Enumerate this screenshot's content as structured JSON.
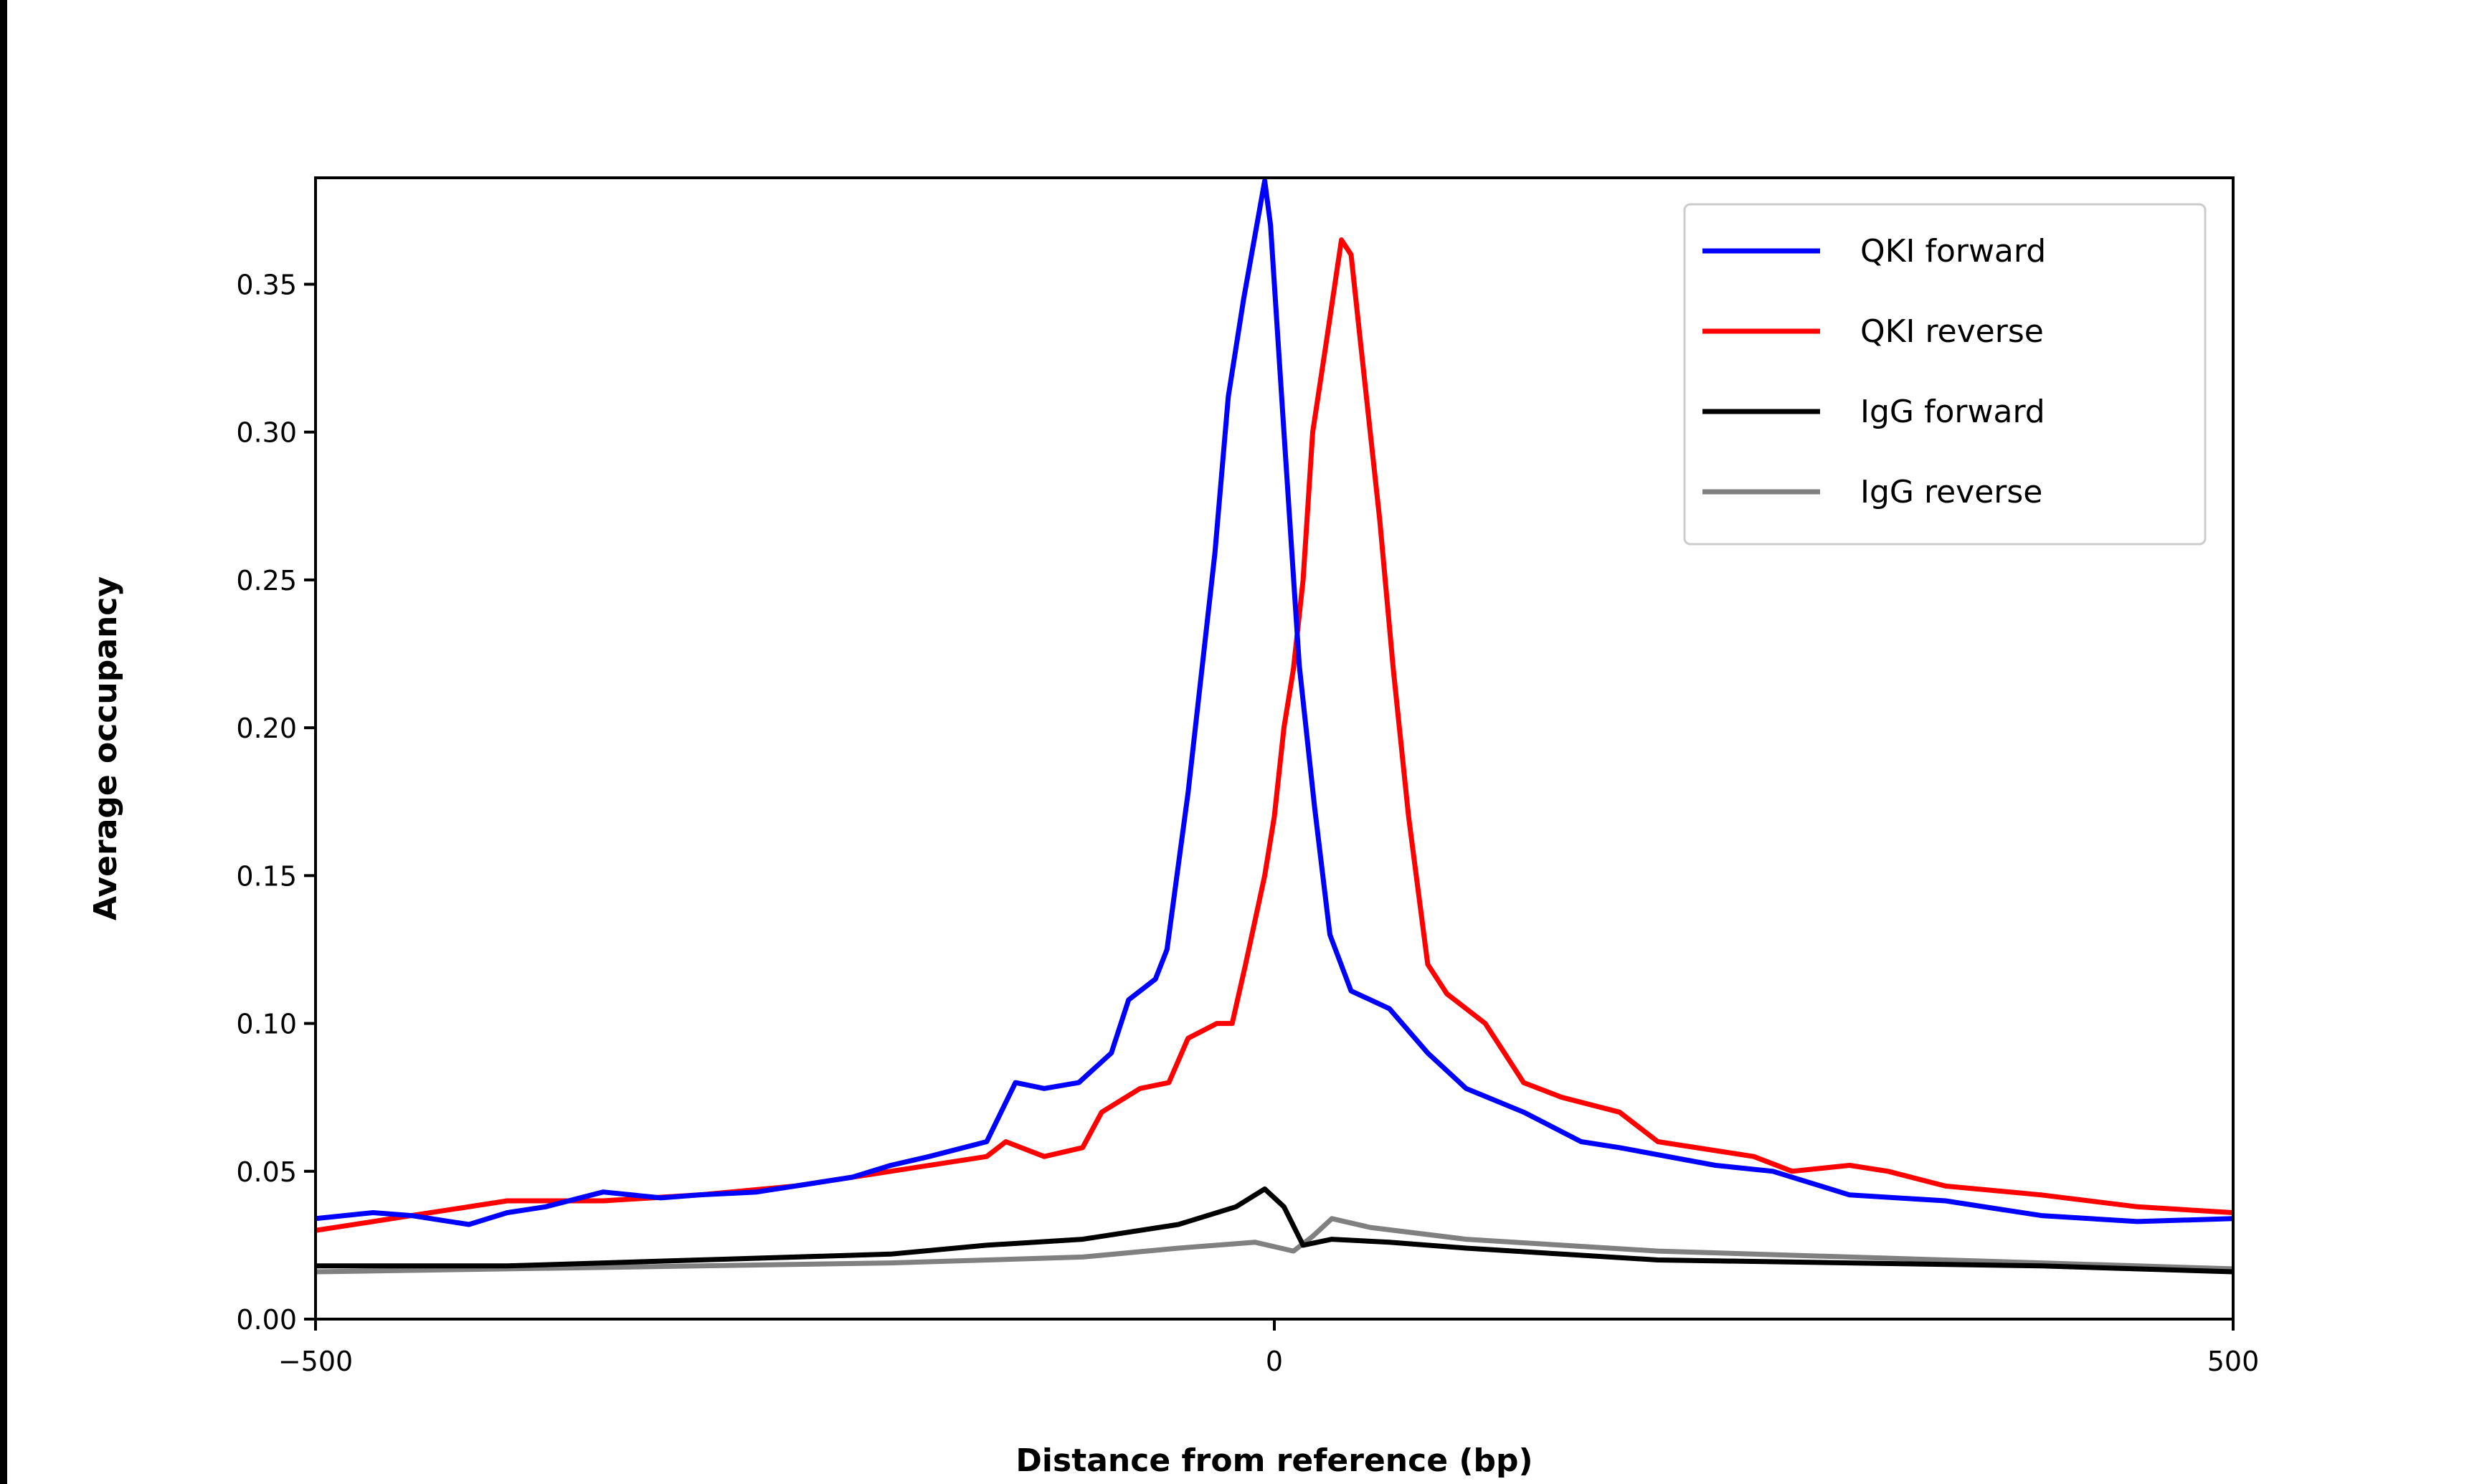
{
  "chart_data": {
    "type": "line",
    "title": "",
    "xlabel": "Distance from reference (bp)",
    "ylabel": "Average occupancy",
    "xlim": [
      -500,
      500
    ],
    "ylim": [
      0,
      0.386
    ],
    "xticks": [
      -500,
      0,
      500
    ],
    "xtick_labels": [
      "−500",
      "0",
      "500"
    ],
    "yticks": [
      0,
      0.05,
      0.1,
      0.15,
      0.2,
      0.25,
      0.3,
      0.35
    ],
    "ytick_labels": [
      "0.00",
      "0.05",
      "0.10",
      "0.15",
      "0.20",
      "0.25",
      "0.30",
      "0.35"
    ],
    "grid": false,
    "legend_position": "top-right",
    "series": [
      {
        "name": "QKI forward",
        "color": "#0000ff",
        "x": [
          -500,
          -470,
          -450,
          -420,
          -400,
          -380,
          -350,
          -320,
          -300,
          -270,
          -250,
          -220,
          -200,
          -180,
          -150,
          -135,
          -120,
          -102,
          -85,
          -76,
          -62,
          -56,
          -45,
          -31,
          -24,
          -16,
          -5,
          -2,
          5,
          13,
          21,
          29,
          40,
          60,
          80,
          100,
          130,
          160,
          180,
          230,
          260,
          300,
          350,
          400,
          450,
          500
        ],
        "y": [
          0.034,
          0.036,
          0.035,
          0.032,
          0.036,
          0.038,
          0.043,
          0.041,
          0.042,
          0.043,
          0.045,
          0.048,
          0.052,
          0.055,
          0.06,
          0.08,
          0.078,
          0.08,
          0.09,
          0.108,
          0.115,
          0.125,
          0.178,
          0.259,
          0.312,
          0.345,
          0.385,
          0.37,
          0.3,
          0.221,
          0.173,
          0.13,
          0.111,
          0.105,
          0.09,
          0.078,
          0.07,
          0.06,
          0.058,
          0.052,
          0.05,
          0.042,
          0.04,
          0.035,
          0.033,
          0.034
        ]
      },
      {
        "name": "QKI reverse",
        "color": "#ff0000",
        "x": [
          -500,
          -450,
          -400,
          -350,
          -300,
          -250,
          -200,
          -150,
          -140,
          -120,
          -100,
          -90,
          -70,
          -55,
          -45,
          -30,
          -22,
          -15,
          -5,
          0,
          5,
          10,
          15,
          20,
          27,
          35,
          40,
          45,
          55,
          62,
          70,
          80,
          90,
          110,
          120,
          130,
          150,
          180,
          200,
          250,
          270,
          300,
          320,
          350,
          400,
          450,
          500
        ],
        "y": [
          0.03,
          0.035,
          0.04,
          0.04,
          0.042,
          0.045,
          0.05,
          0.055,
          0.06,
          0.055,
          0.058,
          0.07,
          0.078,
          0.08,
          0.095,
          0.1,
          0.1,
          0.12,
          0.15,
          0.17,
          0.2,
          0.22,
          0.25,
          0.3,
          0.33,
          0.365,
          0.36,
          0.33,
          0.27,
          0.22,
          0.17,
          0.12,
          0.11,
          0.1,
          0.09,
          0.08,
          0.075,
          0.07,
          0.06,
          0.055,
          0.05,
          0.052,
          0.05,
          0.045,
          0.042,
          0.038,
          0.036
        ]
      },
      {
        "name": "IgG forward",
        "color": "#000000",
        "x": [
          -500,
          -400,
          -300,
          -200,
          -150,
          -100,
          -50,
          -20,
          -5,
          5,
          15,
          30,
          60,
          100,
          150,
          200,
          300,
          400,
          500
        ],
        "y": [
          0.018,
          0.018,
          0.02,
          0.022,
          0.025,
          0.027,
          0.032,
          0.038,
          0.044,
          0.038,
          0.025,
          0.027,
          0.026,
          0.024,
          0.022,
          0.02,
          0.019,
          0.018,
          0.016
        ]
      },
      {
        "name": "IgG reverse",
        "color": "#808080",
        "x": [
          -500,
          -400,
          -300,
          -200,
          -100,
          -50,
          -10,
          10,
          20,
          30,
          50,
          100,
          150,
          200,
          300,
          400,
          500
        ],
        "y": [
          0.016,
          0.017,
          0.018,
          0.019,
          0.021,
          0.024,
          0.026,
          0.023,
          0.028,
          0.034,
          0.031,
          0.027,
          0.025,
          0.023,
          0.021,
          0.019,
          0.017
        ]
      }
    ]
  }
}
